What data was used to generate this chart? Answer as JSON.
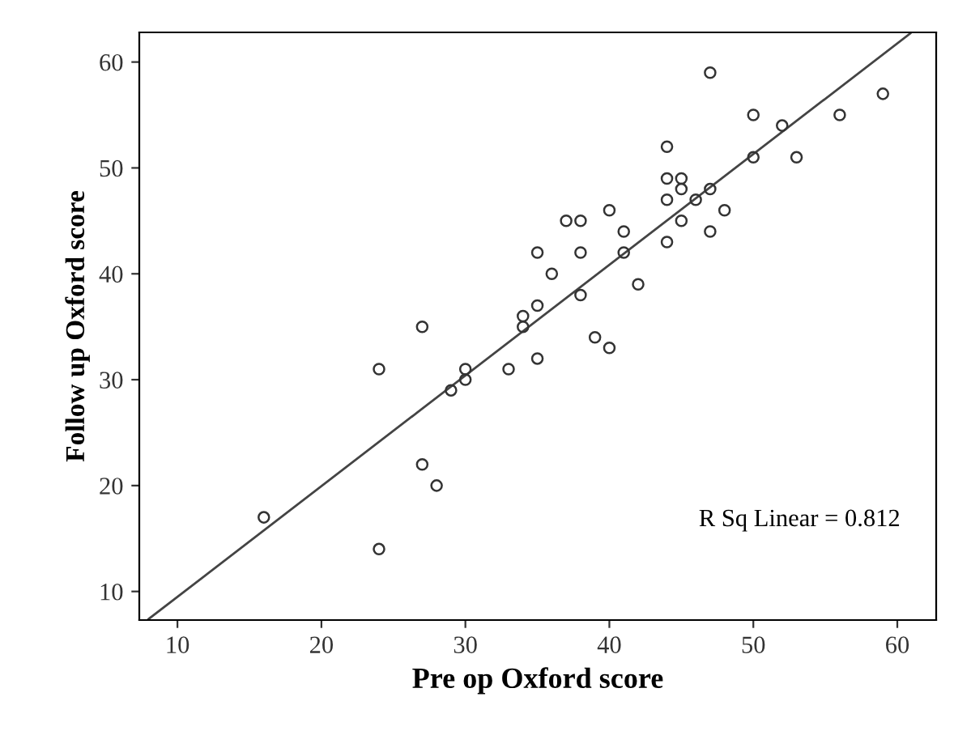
{
  "chart_data": {
    "type": "scatter",
    "xlabel": "Pre op Oxford score",
    "ylabel": "Follow up Oxford score",
    "xlim": [
      7.35,
      62.7
    ],
    "ylim": [
      7.3,
      62.8
    ],
    "xticks": [
      10,
      20,
      30,
      40,
      50,
      60
    ],
    "yticks": [
      10,
      20,
      30,
      40,
      50,
      60
    ],
    "grid": false,
    "series": [
      {
        "marker": "circle",
        "color": "#333333",
        "x": [
          16,
          24,
          24,
          27,
          27,
          28,
          29,
          30,
          30,
          33,
          34,
          34,
          35,
          35,
          35,
          36,
          37,
          38,
          38,
          38,
          39,
          40,
          40,
          41,
          41,
          42,
          44,
          44,
          44,
          44,
          45,
          45,
          45,
          46,
          47,
          47,
          47,
          48,
          50,
          50,
          52,
          53,
          56,
          59
        ],
        "values": [
          17,
          31,
          14,
          35,
          22,
          20,
          29,
          31,
          30,
          31,
          36,
          35,
          42,
          37,
          32,
          40,
          45,
          45,
          42,
          38,
          34,
          46,
          33,
          44,
          42,
          39,
          52,
          49,
          47,
          43,
          49,
          48,
          45,
          47,
          59,
          48,
          44,
          46,
          55,
          51,
          54,
          51,
          55,
          57
        ]
      },
      {
        "type": "line",
        "color": "#444444",
        "line_style": "solid",
        "x": [
          8.0,
          60.9
        ],
        "values": [
          7.4,
          62.7
        ]
      }
    ],
    "annotations": [
      "R Sq Linear = 0.812"
    ]
  }
}
